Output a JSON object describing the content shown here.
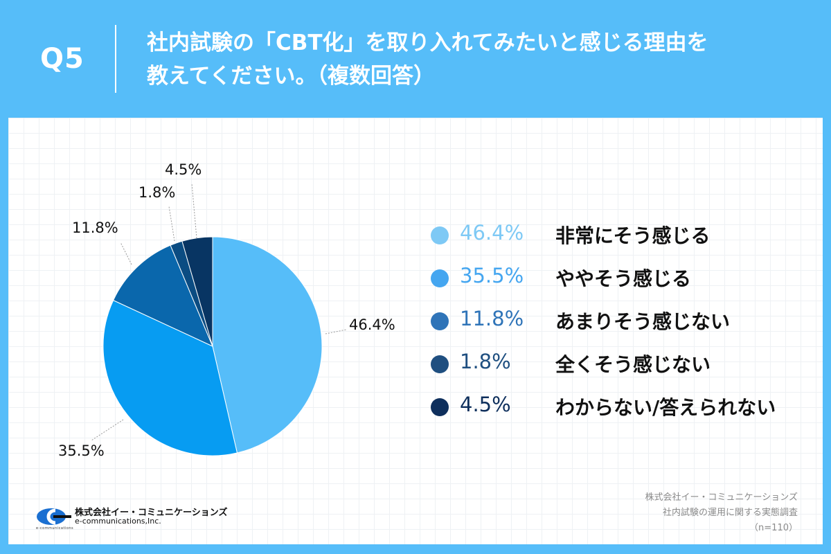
{
  "header": {
    "question_number": "Q5",
    "question_line1": "社内試験の「CBT化」を取り入れてみたいと感じる理由を",
    "question_line2": "教えてください。（複数回答）"
  },
  "chart_data": {
    "type": "pie",
    "unit": "%",
    "slices": [
      {
        "label": "非常にそう感じる",
        "value": 46.4,
        "value_label": "46.4%",
        "color": "#56bdf9",
        "legend_color": "#7ec9f5"
      },
      {
        "label": "ややそう感じる",
        "value": 35.5,
        "value_label": "35.5%",
        "color": "#079cf2",
        "legend_color": "#45a6f0"
      },
      {
        "label": "あまりそう感じない",
        "value": 11.8,
        "value_label": "11.8%",
        "color": "#0a67ac",
        "legend_color": "#2f74b8"
      },
      {
        "label": "全くそう感じない",
        "value": 1.8,
        "value_label": "1.8%",
        "color": "#0b4c82",
        "legend_color": "#1f4f80"
      },
      {
        "label": "わからない/答えられない",
        "value": 4.5,
        "value_label": "4.5%",
        "color": "#083563",
        "legend_color": "#0e2f5c"
      }
    ]
  },
  "footer": {
    "company_jp": "株式会社イー・コミュニケーションズ",
    "company_en": "e-communications,Inc.",
    "logo_small_text": "e-communications",
    "source_line1": "株式会社イー・コミュニケーションズ",
    "source_line2": "社内試験の運用に関する実態調査",
    "sample_size": "（n=110）"
  }
}
